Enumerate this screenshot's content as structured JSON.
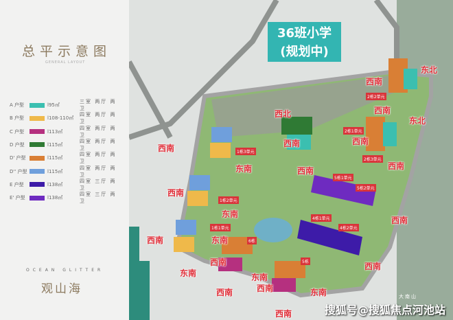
{
  "legend": {
    "title": "总平示意图",
    "subtitle": "GENERAL LAYOUT",
    "items": [
      {
        "type": "A 户型",
        "color": "#3bbfb0",
        "area": "l95㎡",
        "rooms": "三室 两厅 两卫"
      },
      {
        "type": "B 户型",
        "color": "#efb94a",
        "area": "l108-110㎡",
        "rooms": "四室 两厅 两卫"
      },
      {
        "type": "C 户型",
        "color": "#b5307f",
        "area": "l113㎡",
        "rooms": "四室 两厅 两卫"
      },
      {
        "type": "D 户型",
        "color": "#2f7a34",
        "area": "l115㎡",
        "rooms": "四室 两厅 两卫"
      },
      {
        "type": "D' 户型",
        "color": "#d97f35",
        "area": "l115㎡",
        "rooms": "四室 两厅 两卫"
      },
      {
        "type": "D'' 户型",
        "color": "#6f9fdc",
        "area": "l115㎡",
        "rooms": "四室 两厅 两卫"
      },
      {
        "type": "E 户型",
        "color": "#3d1ba8",
        "area": "l138㎡",
        "rooms": "四室 三厅 两卫"
      },
      {
        "type": "E' 户型",
        "color": "#6e2bc0",
        "area": "l138㎡",
        "rooms": "四室 三厅 两卫"
      }
    ]
  },
  "brand": {
    "en": "OCEAN GLITTER",
    "cn": "观山海"
  },
  "school": {
    "line1": "36班小学",
    "line2": "(规划中)"
  },
  "directions": [
    "东北",
    "西南",
    "西南",
    "东北",
    "西北",
    "西南",
    "西南",
    "西南",
    "东南",
    "西南",
    "西南",
    "西南",
    "东南",
    "西南",
    "西南",
    "东南",
    "西南",
    "西南",
    "东南",
    "东南",
    "西南",
    "西南",
    "东南",
    "西南"
  ],
  "units": [
    "2栋2单元",
    "2栋1单元",
    "2栋3单元",
    "1栋3单元",
    "5栋1单元",
    "5栋2单元",
    "1栋2单元",
    "4栋1单元",
    "4栋2单元",
    "1栋1单元",
    "6栋",
    "5栋"
  ],
  "place": "大南山",
  "watermark": "搜狐号@搜狐焦点河池站"
}
